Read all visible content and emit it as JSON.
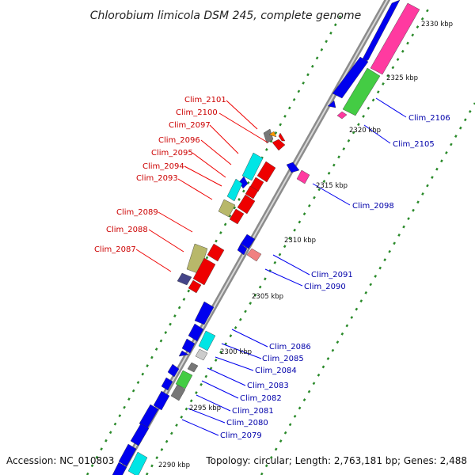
{
  "title": "Chlorobium limicola DSM 245, complete genome",
  "accession": "Accession: NC_010803",
  "topology": "Topology: circular; Length: 2,763,181 bp; Genes: 2,488",
  "kbp_ticks": [
    "2290 kbp",
    "2295 kbp",
    "2300 kbp",
    "2305 kbp",
    "2310 kbp",
    "2315 kbp",
    "2320 kbp",
    "2325 kbp",
    "2330 kbp"
  ],
  "red_labels": [
    "Clim_2101",
    "Clim_2100",
    "Clim_2097",
    "Clim_2096",
    "Clim_2095",
    "Clim_2094",
    "Clim_2093",
    "Clim_2089",
    "Clim_2088",
    "Clim_2087"
  ],
  "blue_labels": [
    "Clim_2106",
    "Clim_2105",
    "Clim_2098",
    "Clim_2091",
    "Clim_2090",
    "Clim_2086",
    "Clim_2085",
    "Clim_2084",
    "Clim_2083",
    "Clim_2082",
    "Clim_2081",
    "Clim_2080",
    "Clim_2079"
  ],
  "colors": {
    "backbone": "#9a9a9a",
    "dots": "#2a8a2a",
    "reverse_gene": "#0000ee",
    "forward_gene": "#ee0000",
    "cyan": "#00e5e5",
    "magenta": "#ff3aa0",
    "green": "#44cc44",
    "olive": "#b8b86a",
    "gray": "#777777",
    "navy": "#444488",
    "pink": "#f08080",
    "orange": "#ff9900",
    "red_label": "#cc0000",
    "blue_label": "#0000aa"
  }
}
